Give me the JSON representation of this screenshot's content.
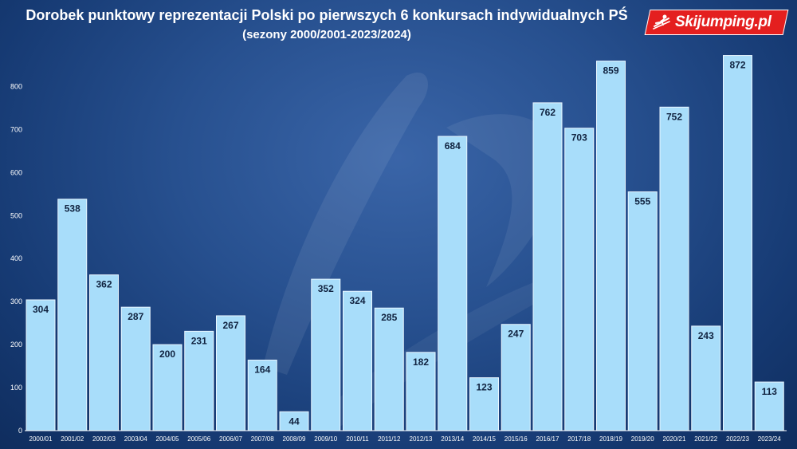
{
  "header": {
    "title": "Dorobek punktowy reprezentacji Polski po pierwszych 6 konkursach indywidualnych PŚ",
    "subtitle": "(sezony 2000/2001-2023/2024)",
    "logo_text": "Skijumping.pl",
    "logo_icon": "ski-jumper-icon"
  },
  "colors": {
    "background": "#27508f",
    "bar_fill": "#a8ddfa",
    "logo_red": "#e41f1f"
  },
  "chart_data": {
    "type": "bar",
    "title": "Dorobek punktowy reprezentacji Polski po pierwszych 6 konkursach indywidualnych PŚ",
    "subtitle": "(sezony 2000/2001-2023/2024)",
    "categories": [
      "2000/01",
      "2001/02",
      "2002/03",
      "2003/04",
      "2004/05",
      "2005/06",
      "2006/07",
      "2007/08",
      "2008/09",
      "2009/10",
      "2010/11",
      "2011/12",
      "2012/13",
      "2013/14",
      "2014/15",
      "2015/16",
      "2016/17",
      "2017/18",
      "2018/19",
      "2019/20",
      "2020/21",
      "2021/22",
      "2022/23",
      "2023/24"
    ],
    "values": [
      304,
      538,
      362,
      287,
      200,
      231,
      267,
      164,
      44,
      352,
      324,
      285,
      182,
      684,
      123,
      247,
      762,
      703,
      859,
      555,
      752,
      243,
      872,
      113
    ],
    "ylim": [
      0,
      890
    ],
    "yticks": [
      0,
      100,
      200,
      300,
      400,
      500,
      600,
      700,
      800
    ],
    "grid": false,
    "data_labels": true,
    "xlabel": "",
    "ylabel": ""
  }
}
